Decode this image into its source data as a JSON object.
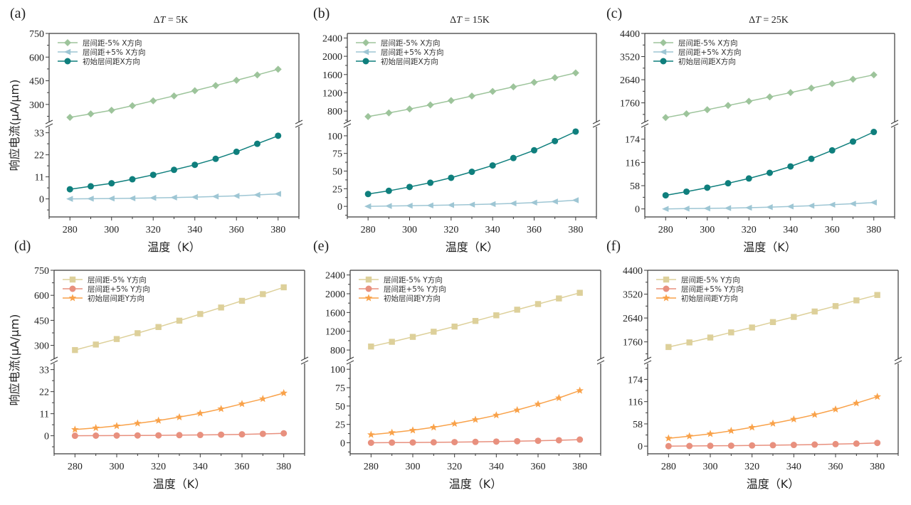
{
  "figure": {
    "colors": {
      "x_minus": "#9dc49b",
      "x_plus": "#9ec6d4",
      "x_init": "#0f7f7d",
      "y_minus": "#ddd09a",
      "y_plus": "#e8907e",
      "y_init": "#f9a24a",
      "axis": "#3a3a3a"
    }
  },
  "chart_data": [
    {
      "panel": "(a)",
      "type": "line",
      "title": "ΔT = 5K",
      "title_delta": "Δ",
      "title_var": "T",
      "title_rest": " = 5K",
      "xlabel": "温度（K）",
      "ylabel": "响应电流(μA/μm)",
      "x": [
        280,
        290,
        300,
        310,
        320,
        330,
        340,
        350,
        360,
        370,
        380
      ],
      "xlim": [
        270,
        390
      ],
      "xticks": [
        280,
        300,
        320,
        340,
        360,
        380
      ],
      "y_break": true,
      "upper_ylim": [
        200,
        750
      ],
      "upper_yticks": [
        300,
        450,
        600,
        750
      ],
      "lower_ylim": [
        -9,
        35
      ],
      "lower_yticks": [
        0,
        11,
        22,
        33
      ],
      "legend_loc": "upper-left",
      "series": [
        {
          "name": "层间距-5% X方向",
          "marker": "diamond",
          "color_key": "x_minus",
          "axis": "upper",
          "values": [
            218,
            240,
            263,
            292,
            323,
            354,
            387,
            420,
            453,
            487,
            523
          ]
        },
        {
          "name": "层间距+5% X方向",
          "marker": "triangle-left",
          "color_key": "x_plus",
          "axis": "lower",
          "values": [
            0.0,
            0.1,
            0.2,
            0.3,
            0.5,
            0.7,
            0.9,
            1.2,
            1.5,
            2.0,
            2.5
          ]
        },
        {
          "name": "初始层间距X方向",
          "marker": "circle",
          "color_key": "x_init",
          "axis": "lower",
          "values": [
            4.8,
            6.3,
            7.8,
            9.8,
            12.0,
            14.5,
            17.0,
            20.0,
            23.5,
            27.5,
            31.5
          ]
        }
      ]
    },
    {
      "panel": "(b)",
      "type": "line",
      "title": "ΔT = 15K",
      "title_delta": "Δ",
      "title_var": "T",
      "title_rest": " = 15K",
      "xlabel": "温度（K）",
      "ylabel": "",
      "x": [
        280,
        290,
        300,
        310,
        320,
        330,
        340,
        350,
        360,
        370,
        380
      ],
      "xlim": [
        270,
        390
      ],
      "xticks": [
        280,
        300,
        320,
        340,
        360,
        380
      ],
      "y_break": true,
      "upper_ylim": [
        600,
        2500
      ],
      "upper_yticks": [
        800,
        1200,
        1600,
        2000,
        2400
      ],
      "lower_ylim": [
        -15,
        110
      ],
      "lower_yticks": [
        0,
        25,
        50,
        75,
        100
      ],
      "legend_loc": "upper-left",
      "series": [
        {
          "name": "层间距-5% X方向",
          "marker": "diamond",
          "color_key": "x_minus",
          "axis": "upper",
          "values": [
            680,
            760,
            845,
            935,
            1030,
            1130,
            1230,
            1330,
            1430,
            1530,
            1635
          ]
        },
        {
          "name": "层间距+5% X方向",
          "marker": "triangle-left",
          "color_key": "x_plus",
          "axis": "lower",
          "values": [
            0.0,
            0.5,
            0.9,
            1.3,
            1.8,
            2.5,
            3.2,
            4.2,
            5.3,
            6.8,
            8.7
          ]
        },
        {
          "name": "初始层间距X方向",
          "marker": "circle",
          "color_key": "x_init",
          "axis": "lower",
          "values": [
            17.5,
            22.0,
            27.5,
            33.5,
            40.5,
            49.0,
            58.0,
            68.5,
            79.5,
            92.5,
            106.0
          ]
        }
      ]
    },
    {
      "panel": "(c)",
      "type": "line",
      "title": "ΔT = 25K",
      "title_delta": "Δ",
      "title_var": "T",
      "title_rest": " = 25K",
      "xlabel": "温度（K）",
      "ylabel": "",
      "x": [
        280,
        290,
        300,
        310,
        320,
        330,
        340,
        350,
        360,
        370,
        380
      ],
      "xlim": [
        270,
        390
      ],
      "xticks": [
        280,
        300,
        320,
        340,
        360,
        380
      ],
      "y_break": true,
      "upper_ylim": [
        1100,
        4400
      ],
      "upper_yticks": [
        1760,
        2640,
        3520,
        4400
      ],
      "lower_ylim": [
        -20,
        200
      ],
      "lower_yticks": [
        0,
        58,
        116,
        174
      ],
      "legend_loc": "upper-left",
      "series": [
        {
          "name": "层间距-5% X方向",
          "marker": "diamond",
          "color_key": "x_minus",
          "axis": "upper",
          "values": [
            1200,
            1345,
            1500,
            1660,
            1820,
            1985,
            2150,
            2320,
            2490,
            2660,
            2825
          ]
        },
        {
          "name": "层间距+5% X方向",
          "marker": "triangle-left",
          "color_key": "x_plus",
          "axis": "lower",
          "values": [
            0.0,
            0.7,
            1.3,
            2.0,
            3.0,
            4.5,
            6.0,
            8.0,
            10.5,
            13.0,
            16.0
          ]
        },
        {
          "name": "初始层间距X方向",
          "marker": "circle",
          "color_key": "x_init",
          "axis": "lower",
          "values": [
            34,
            43,
            53,
            64,
            76,
            90,
            106,
            125,
            146,
            168,
            192
          ]
        }
      ]
    },
    {
      "panel": "(d)",
      "type": "line",
      "title": "",
      "xlabel": "温度（K）",
      "ylabel": "响应电流(μA/μm)",
      "x": [
        280,
        290,
        300,
        310,
        320,
        330,
        340,
        350,
        360,
        370,
        380
      ],
      "xlim": [
        270,
        390
      ],
      "xticks": [
        280,
        300,
        320,
        340,
        360,
        380
      ],
      "y_break": true,
      "upper_ylim": [
        230,
        750
      ],
      "upper_yticks": [
        300,
        450,
        600,
        750
      ],
      "lower_ylim": [
        -9,
        35
      ],
      "lower_yticks": [
        0,
        11,
        22,
        33
      ],
      "legend_loc": "upper-left",
      "series": [
        {
          "name": "层间距-5% Y方向",
          "marker": "square",
          "color_key": "y_minus",
          "axis": "upper",
          "values": [
            272,
            305,
            338,
            373,
            410,
            448,
            488,
            527,
            567,
            607,
            648
          ]
        },
        {
          "name": "层间距+5% Y方向",
          "marker": "circle",
          "color_key": "y_plus",
          "axis": "lower",
          "values": [
            0.0,
            0.05,
            0.1,
            0.15,
            0.2,
            0.3,
            0.4,
            0.55,
            0.7,
            0.95,
            1.2
          ]
        },
        {
          "name": "初始层间距Y方向",
          "marker": "star",
          "color_key": "y_init",
          "axis": "lower",
          "values": [
            3.1,
            3.9,
            4.9,
            6.2,
            7.6,
            9.3,
            11.2,
            13.4,
            15.9,
            18.4,
            21.3
          ]
        }
      ]
    },
    {
      "panel": "(e)",
      "type": "line",
      "title": "",
      "xlabel": "温度（K）",
      "ylabel": "",
      "x": [
        280,
        290,
        300,
        310,
        320,
        330,
        340,
        350,
        360,
        370,
        380
      ],
      "xlim": [
        270,
        390
      ],
      "xticks": [
        280,
        300,
        320,
        340,
        360,
        380
      ],
      "y_break": true,
      "upper_ylim": [
        650,
        2500
      ],
      "upper_yticks": [
        800,
        1200,
        1600,
        2000,
        2400
      ],
      "lower_ylim": [
        -15,
        105
      ],
      "lower_yticks": [
        0,
        25,
        50,
        75,
        100
      ],
      "legend_loc": "upper-left",
      "series": [
        {
          "name": "层间距-5% Y方向",
          "marker": "square",
          "color_key": "y_minus",
          "axis": "upper",
          "values": [
            875,
            975,
            1080,
            1190,
            1300,
            1420,
            1540,
            1660,
            1780,
            1900,
            2020
          ]
        },
        {
          "name": "层间距+5% Y方向",
          "marker": "circle",
          "color_key": "y_plus",
          "axis": "lower",
          "values": [
            0.0,
            0.2,
            0.4,
            0.6,
            0.9,
            1.2,
            1.6,
            2.1,
            2.7,
            3.4,
            4.3
          ]
        },
        {
          "name": "初始层间距Y方向",
          "marker": "star",
          "color_key": "y_init",
          "axis": "lower",
          "values": [
            11.0,
            13.8,
            17.0,
            21.0,
            26.0,
            31.5,
            37.5,
            44.5,
            52.5,
            61.0,
            71.0
          ]
        }
      ]
    },
    {
      "panel": "(f)",
      "type": "line",
      "title": "",
      "xlabel": "温度（K）",
      "ylabel": "",
      "x": [
        280,
        290,
        300,
        310,
        320,
        330,
        340,
        350,
        360,
        370,
        380
      ],
      "xlim": [
        270,
        390
      ],
      "xticks": [
        280,
        300,
        320,
        340,
        360,
        380
      ],
      "y_break": true,
      "upper_ylim": [
        1200,
        4400
      ],
      "upper_yticks": [
        1760,
        2640,
        3520,
        4400
      ],
      "lower_ylim": [
        -20,
        210
      ],
      "lower_yticks": [
        0,
        58,
        116,
        174
      ],
      "legend_loc": "upper-left",
      "series": [
        {
          "name": "层间距-5% Y方向",
          "marker": "square",
          "color_key": "y_minus",
          "axis": "upper",
          "values": [
            1570,
            1740,
            1920,
            2110,
            2290,
            2490,
            2680,
            2880,
            3080,
            3290,
            3490
          ]
        },
        {
          "name": "层间距+5% Y方向",
          "marker": "circle",
          "color_key": "y_plus",
          "axis": "lower",
          "values": [
            0.0,
            0.4,
            0.8,
            1.2,
            1.7,
            2.4,
            3.1,
            4.0,
            5.2,
            6.6,
            8.3
          ]
        },
        {
          "name": "初始层间距Y方向",
          "marker": "star",
          "color_key": "y_init",
          "axis": "lower",
          "values": [
            20.5,
            26.0,
            32.0,
            40.0,
            49.0,
            59.0,
            70.0,
            82.0,
            96.0,
            112.0,
            129.0
          ]
        }
      ]
    }
  ]
}
